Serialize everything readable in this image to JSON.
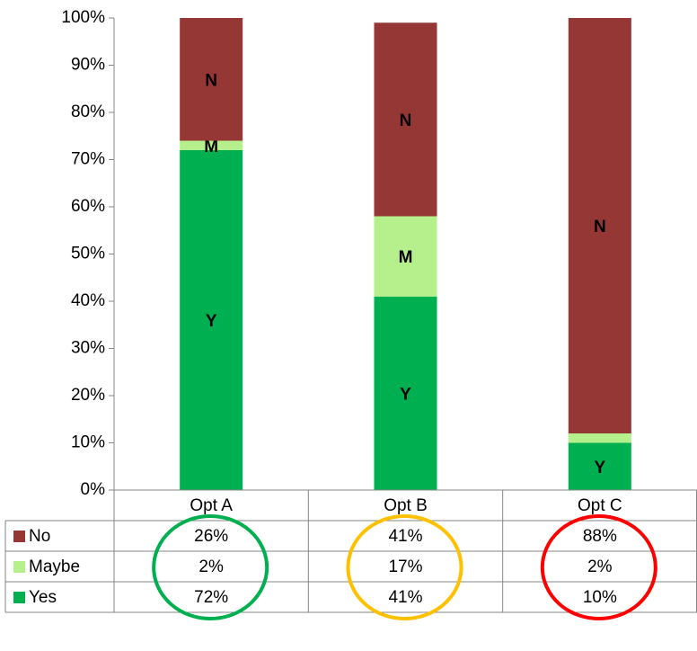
{
  "chart_data": {
    "type": "stacked_bar",
    "categories": [
      "Opt A",
      "Opt B",
      "Opt C"
    ],
    "series": [
      {
        "name": "Yes",
        "color": "#00b050",
        "values": [
          72,
          41,
          10
        ],
        "value_labels": [
          "72%",
          "41%",
          "10%"
        ],
        "labels": [
          "Y",
          "Y",
          "Y"
        ]
      },
      {
        "name": "Maybe",
        "color": "#b5f08c",
        "values": [
          2,
          17,
          2
        ],
        "value_labels": [
          "2%",
          "17%",
          "2%"
        ],
        "labels": [
          "M",
          "M",
          null
        ]
      },
      {
        "name": "No",
        "color": "#953735",
        "values": [
          26,
          41,
          88
        ],
        "value_labels": [
          "26%",
          "41%",
          "88%"
        ],
        "labels": [
          "N",
          "N",
          "N"
        ]
      }
    ],
    "ylim": [
      0,
      100
    ],
    "yticks": [
      {
        "value": 0,
        "label": "0%"
      },
      {
        "value": 10,
        "label": "10%"
      },
      {
        "value": 20,
        "label": "20%"
      },
      {
        "value": 30,
        "label": "30%"
      },
      {
        "value": 40,
        "label": "40%"
      },
      {
        "value": 50,
        "label": "50%"
      },
      {
        "value": 60,
        "label": "60%"
      },
      {
        "value": 70,
        "label": "70%"
      },
      {
        "value": 80,
        "label": "80%"
      },
      {
        "value": 90,
        "label": "90%"
      },
      {
        "value": 100,
        "label": "100%"
      }
    ],
    "grid": false,
    "data_table": true,
    "category_highlight_colors": [
      "#00b050",
      "#ffc000",
      "#ff0000"
    ]
  }
}
